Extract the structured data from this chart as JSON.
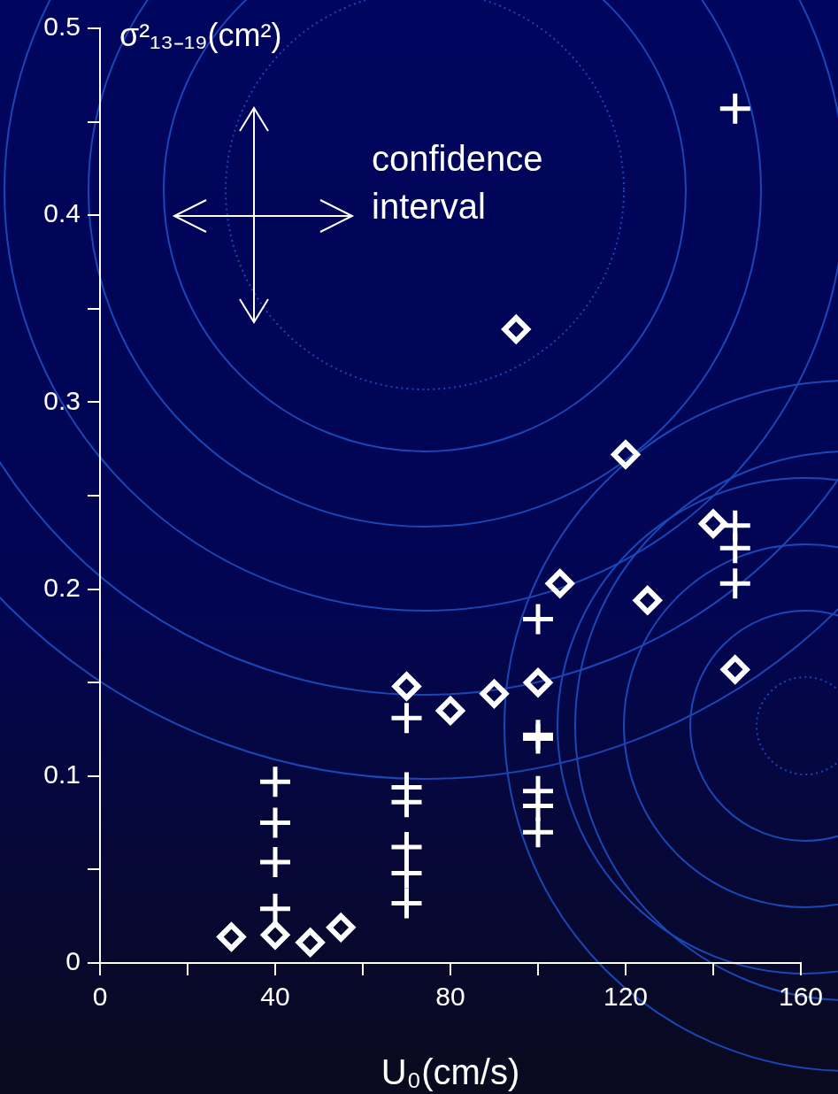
{
  "chart_data": {
    "type": "scatter",
    "xlabel": "U₀(cm/s)",
    "ylabel": "σ²₁₃₋₁₉(cm²)",
    "annotations": [
      "confidence interval"
    ],
    "xlim": [
      0,
      160
    ],
    "xticks": [
      0,
      {
        "value": 20,
        "label": null
      },
      40,
      {
        "value": 60,
        "label": null
      },
      80,
      {
        "value": 100,
        "label": null
      },
      120,
      {
        "value": 140,
        "label": null
      },
      160
    ],
    "ylim": [
      0,
      0.5
    ],
    "yticks": [
      0,
      {
        "value": 0.05,
        "label": null
      },
      0.1,
      {
        "value": 0.15,
        "label": null
      },
      0.2,
      {
        "value": 0.25,
        "label": null
      },
      0.3,
      {
        "value": 0.35,
        "label": null
      },
      0.4,
      {
        "value": 0.45,
        "label": null
      },
      0.5
    ],
    "series": [
      {
        "color": "#ffffff",
        "marker": "cross",
        "x": [
          40,
          40,
          40,
          40,
          70,
          70,
          70,
          70,
          70,
          70,
          100,
          100,
          100,
          100,
          100,
          100,
          145,
          145,
          145,
          145
        ],
        "values": [
          0.097,
          0.075,
          0.054,
          0.029,
          0.131,
          0.094,
          0.086,
          0.062,
          0.048,
          0.032,
          0.184,
          0.122,
          0.12,
          0.092,
          0.084,
          0.07,
          0.457,
          0.234,
          0.222,
          0.203
        ]
      },
      {
        "color": "#ffffff",
        "marker": "diamond",
        "x": [
          30,
          40,
          48,
          55,
          70,
          80,
          90,
          95,
          100,
          105,
          120,
          125,
          140,
          145
        ],
        "values": [
          0.014,
          0.015,
          0.011,
          0.019,
          0.148,
          0.135,
          0.144,
          0.339,
          0.15,
          0.203,
          0.272,
          0.194,
          0.235,
          0.157
        ]
      }
    ]
  }
}
